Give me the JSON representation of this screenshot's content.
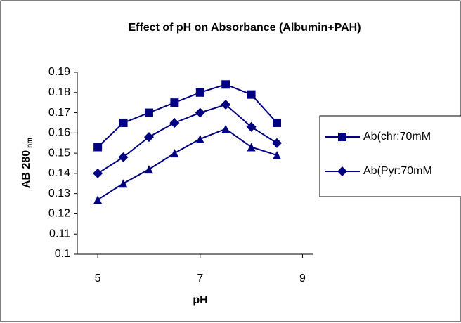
{
  "chart_data": {
    "type": "line",
    "title": "Effect of pH on Absorbance (Albumin+PAH)",
    "x_label": "pH",
    "y_label": {
      "text": "AB 280",
      "subscript": "nm"
    },
    "x": [
      5,
      5.5,
      6,
      6.5,
      7,
      7.5,
      8,
      8.5
    ],
    "series": [
      {
        "name": "Ab(chr:70mM",
        "color": "#000080",
        "marker": "square",
        "values": [
          0.153,
          0.165,
          0.17,
          0.175,
          0.18,
          0.184,
          0.179,
          0.165
        ]
      },
      {
        "name": "Ab(Pyr:70mM",
        "color": "#000080",
        "marker": "diamond",
        "values": [
          0.14,
          0.148,
          0.158,
          0.165,
          0.17,
          0.174,
          0.163,
          0.155
        ]
      },
      {
        "color": "#000080",
        "marker": "triangle",
        "values": [
          0.127,
          0.135,
          0.142,
          0.15,
          0.157,
          0.162,
          0.153,
          0.149
        ]
      }
    ],
    "xlim": [
      4.6,
      9.2
    ],
    "xticks": [
      5,
      7,
      9
    ],
    "ylim": [
      0.1,
      0.19
    ],
    "yticks": [
      0.1,
      0.11,
      0.12,
      0.13,
      0.14,
      0.15,
      0.16,
      0.17,
      0.18,
      0.19
    ],
    "grid": false,
    "legend": "right"
  }
}
